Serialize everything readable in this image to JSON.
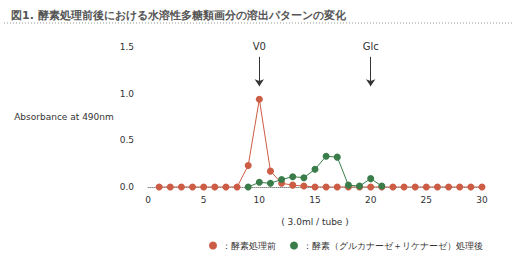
{
  "chart_data": {
    "type": "line",
    "title": "図1. 酵素処理前後における水溶性多糖類画分の溶出パターンの変化",
    "x_label": "( 3.0ml / tube )",
    "y_label": "Absorbance at 490nm",
    "x": [
      1,
      2,
      3,
      4,
      5,
      6,
      7,
      8,
      9,
      10,
      11,
      12,
      13,
      14,
      15,
      16,
      17,
      18,
      19,
      20,
      21,
      22,
      23,
      24,
      25,
      26,
      27,
      28,
      29,
      30
    ],
    "series": [
      {
        "name": "：酵素処理前",
        "color": "#cd5c45",
        "marker": "circle",
        "values": [
          0,
          0,
          0,
          0,
          0,
          0,
          0,
          0,
          0.23,
          0.94,
          0.17,
          0.04,
          0.02,
          0.01,
          0,
          0,
          0,
          0,
          0,
          0,
          0,
          0,
          0,
          0,
          0,
          0,
          0,
          0,
          0,
          0
        ]
      },
      {
        "name": "：酵素（グルカナーゼ＋リケナーゼ）処理後",
        "color": "#3a7d4a",
        "marker": "circle",
        "values": [
          null,
          null,
          null,
          null,
          null,
          null,
          null,
          null,
          0,
          0.05,
          0.04,
          0.08,
          0.11,
          0.1,
          0.19,
          0.33,
          0.32,
          0.02,
          0.01,
          0.09,
          0.01,
          null,
          null,
          null,
          null,
          null,
          null,
          null,
          null,
          null
        ]
      }
    ],
    "xlim": [
      0,
      30
    ],
    "xticks": [
      0,
      5,
      10,
      15,
      20,
      25,
      30
    ],
    "ylim": [
      0,
      1.5
    ],
    "yticks": [
      {
        "value": 0,
        "label": "0.0"
      },
      {
        "value": 0.5,
        "label": "0.5"
      },
      {
        "value": 1,
        "label": "1.0"
      },
      {
        "value": 1.5,
        "label": "1.5"
      }
    ],
    "annotations": [
      {
        "text": "V0",
        "x": 10
      },
      {
        "text": "Glc",
        "x": 20
      }
    ],
    "grid": false,
    "legend": "bottom"
  }
}
